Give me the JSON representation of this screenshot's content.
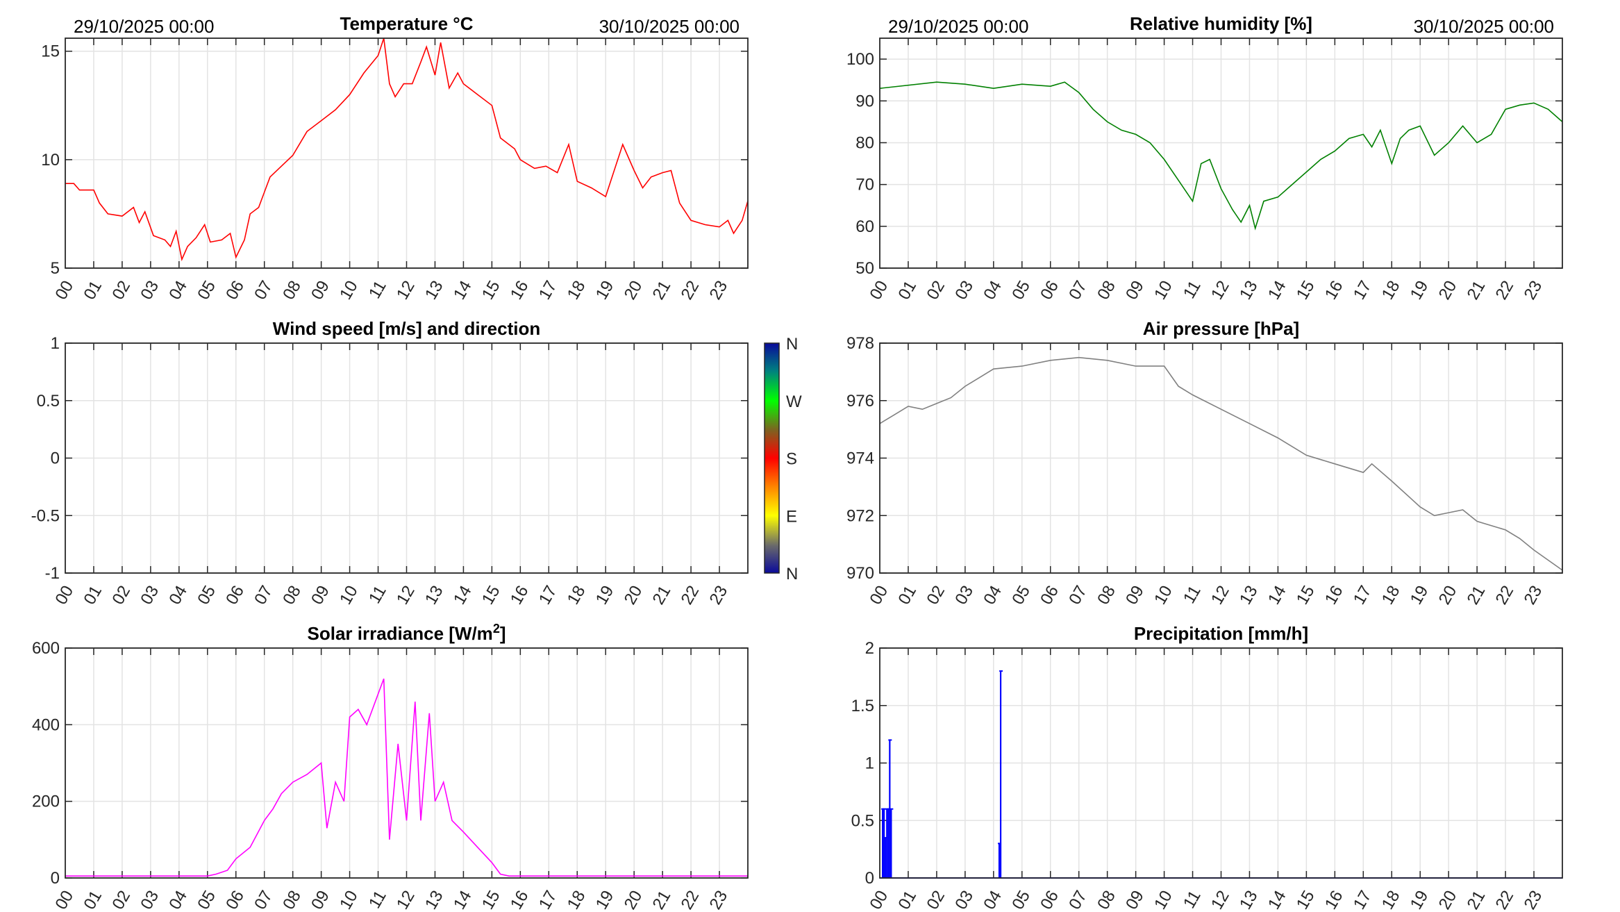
{
  "x_tick_labels": [
    "00",
    "01",
    "02",
    "03",
    "04",
    "05",
    "06",
    "07",
    "08",
    "09",
    "10",
    "11",
    "12",
    "13",
    "14",
    "15",
    "16",
    "17",
    "18",
    "19",
    "20",
    "21",
    "22",
    "23"
  ],
  "date_start": "29/10/2025 00:00",
  "date_end": "30/10/2025 00:00",
  "colorbar": {
    "labels": [
      "N",
      "W",
      "S",
      "E",
      "N"
    ]
  },
  "chart_data": [
    {
      "id": "temperature",
      "type": "line",
      "title": "Temperature °C",
      "title_sup": "",
      "color": "#ff0000",
      "ylim": [
        5,
        15.6
      ],
      "yticks": [
        5,
        10,
        15
      ],
      "ytick_labels": [
        "5",
        "10",
        "15"
      ],
      "xlim": [
        0,
        24
      ],
      "x": [
        0,
        0.3,
        0.5,
        1,
        1.2,
        1.5,
        2,
        2.4,
        2.6,
        2.8,
        3.1,
        3.5,
        3.7,
        3.9,
        4.1,
        4.3,
        4.6,
        4.9,
        5.1,
        5.5,
        5.8,
        6.0,
        6.3,
        6.5,
        6.8,
        7.2,
        7.6,
        8,
        8.5,
        9,
        9.5,
        10,
        10.5,
        11,
        11.2,
        11.4,
        11.6,
        11.9,
        12.2,
        12.5,
        12.7,
        13,
        13.2,
        13.5,
        13.8,
        14,
        14.5,
        15,
        15.3,
        15.8,
        16,
        16.5,
        16.9,
        17.3,
        17.7,
        18,
        18.5,
        19,
        19.3,
        19.6,
        20,
        20.3,
        20.6,
        21,
        21.3,
        21.6,
        22,
        22.5,
        23,
        23.3,
        23.5,
        23.8,
        24
      ],
      "y": [
        8.9,
        8.9,
        8.6,
        8.6,
        8.0,
        7.5,
        7.4,
        7.8,
        7.1,
        7.6,
        6.5,
        6.3,
        6.0,
        6.7,
        5.4,
        6.0,
        6.4,
        7.0,
        6.2,
        6.3,
        6.6,
        5.5,
        6.3,
        7.5,
        7.8,
        9.2,
        9.7,
        10.2,
        11.3,
        11.8,
        12.3,
        13.0,
        14.0,
        14.8,
        15.6,
        13.5,
        12.9,
        13.5,
        13.5,
        14.5,
        15.2,
        13.9,
        15.4,
        13.3,
        14.0,
        13.5,
        13.0,
        12.5,
        11.0,
        10.5,
        10.0,
        9.6,
        9.7,
        9.4,
        10.7,
        9.0,
        8.7,
        8.3,
        9.5,
        10.7,
        9.5,
        8.7,
        9.2,
        9.4,
        9.5,
        8.0,
        7.2,
        7.0,
        6.9,
        7.2,
        6.6,
        7.2,
        8.1
      ]
    },
    {
      "id": "humidity",
      "type": "line",
      "title": "Relative humidity [%]",
      "title_sup": "",
      "color": "#008000",
      "ylim": [
        50,
        105
      ],
      "yticks": [
        50,
        60,
        70,
        80,
        90,
        100
      ],
      "ytick_labels": [
        "50",
        "60",
        "70",
        "80",
        "90",
        "100"
      ],
      "xlim": [
        0,
        24
      ],
      "x": [
        0,
        2,
        3,
        4,
        5,
        6,
        6.5,
        7,
        7.5,
        8,
        8.5,
        9,
        9.5,
        10,
        10.5,
        11,
        11.3,
        11.6,
        12,
        12.4,
        12.7,
        13,
        13.2,
        13.5,
        14,
        14.5,
        15,
        15.5,
        16,
        16.5,
        17,
        17.3,
        17.6,
        18,
        18.3,
        18.6,
        19,
        19.5,
        20,
        20.5,
        21,
        21.5,
        22,
        22.5,
        23,
        23.5,
        24
      ],
      "y": [
        93,
        94.5,
        94,
        93,
        94,
        93.5,
        94.5,
        92,
        88,
        85,
        83,
        82,
        80,
        76,
        71,
        66,
        75,
        76,
        69,
        64,
        61,
        65,
        59.5,
        66,
        67,
        70,
        73,
        76,
        78,
        81,
        82,
        79,
        83,
        75,
        81,
        83,
        84,
        77,
        80,
        84,
        80,
        82,
        88,
        89,
        89.5,
        88,
        85
      ]
    },
    {
      "id": "wind",
      "type": "line",
      "title": "Wind speed [m/s] and direction",
      "title_sup": "",
      "color": "#000000",
      "ylim": [
        -1,
        1
      ],
      "yticks": [
        -1,
        -0.5,
        0,
        0.5,
        1
      ],
      "ytick_labels": [
        "-1",
        "-0.5",
        "0",
        "0.5",
        "1"
      ],
      "xlim": [
        0,
        24
      ],
      "x": [],
      "y": []
    },
    {
      "id": "pressure",
      "type": "line",
      "title": "Air pressure [hPa]",
      "title_sup": "",
      "color": "#808080",
      "ylim": [
        970,
        978
      ],
      "yticks": [
        970,
        972,
        974,
        976,
        978
      ],
      "ytick_labels": [
        "970",
        "972",
        "974",
        "976",
        "978"
      ],
      "xlim": [
        0,
        24
      ],
      "x": [
        0,
        0.5,
        1,
        1.5,
        2,
        2.5,
        3,
        3.5,
        4,
        5,
        6,
        7,
        8,
        9,
        10,
        10.5,
        11,
        12,
        13,
        14,
        15,
        16,
        17,
        17.3,
        18,
        19,
        19.5,
        20,
        20.5,
        21,
        22,
        22.5,
        23,
        24
      ],
      "y": [
        975.2,
        975.5,
        975.8,
        975.7,
        975.9,
        976.1,
        976.5,
        976.8,
        977.1,
        977.2,
        977.4,
        977.5,
        977.4,
        977.2,
        977.2,
        976.5,
        976.2,
        975.7,
        975.2,
        974.7,
        974.1,
        973.8,
        973.5,
        973.8,
        973.2,
        972.3,
        972.0,
        972.1,
        972.2,
        971.8,
        971.5,
        971.2,
        970.8,
        970.1
      ]
    },
    {
      "id": "solar",
      "type": "line",
      "title": "Solar irradiance [W/m",
      "title_sup": "2",
      "title_end": "]",
      "color": "#ff00ff",
      "ylim": [
        0,
        600
      ],
      "yticks": [
        0,
        200,
        400,
        600
      ],
      "ytick_labels": [
        "0",
        "200",
        "400",
        "600"
      ],
      "xlim": [
        0,
        24
      ],
      "x": [
        0,
        5,
        5.3,
        5.7,
        6,
        6.5,
        7,
        7.3,
        7.6,
        8,
        8.5,
        9,
        9.2,
        9.5,
        9.8,
        10,
        10.3,
        10.6,
        11,
        11.2,
        11.4,
        11.7,
        12,
        12.3,
        12.5,
        12.8,
        13,
        13.3,
        13.6,
        14,
        14.5,
        15,
        15.3,
        15.6,
        24
      ],
      "y": [
        5,
        5,
        10,
        20,
        50,
        80,
        150,
        180,
        220,
        250,
        270,
        300,
        130,
        250,
        200,
        420,
        440,
        400,
        480,
        520,
        100,
        350,
        150,
        460,
        150,
        430,
        200,
        250,
        150,
        120,
        80,
        40,
        10,
        5,
        5
      ]
    },
    {
      "id": "precipitation",
      "type": "bar",
      "title": "Precipitation [mm/h]",
      "title_sup": "",
      "color": "#0000ff",
      "ylim": [
        0,
        2
      ],
      "yticks": [
        0,
        0.5,
        1,
        1.5,
        2
      ],
      "ytick_labels": [
        "0",
        "0.5",
        "1",
        "1.5",
        "2"
      ],
      "xlim": [
        0,
        24
      ],
      "x": [
        0.1,
        0.15,
        0.2,
        0.25,
        0.3,
        0.35,
        0.4,
        4.2,
        4.25
      ],
      "y": [
        0.6,
        0.6,
        0.35,
        0.6,
        0.6,
        1.2,
        0.6,
        0.3,
        1.8
      ]
    }
  ]
}
